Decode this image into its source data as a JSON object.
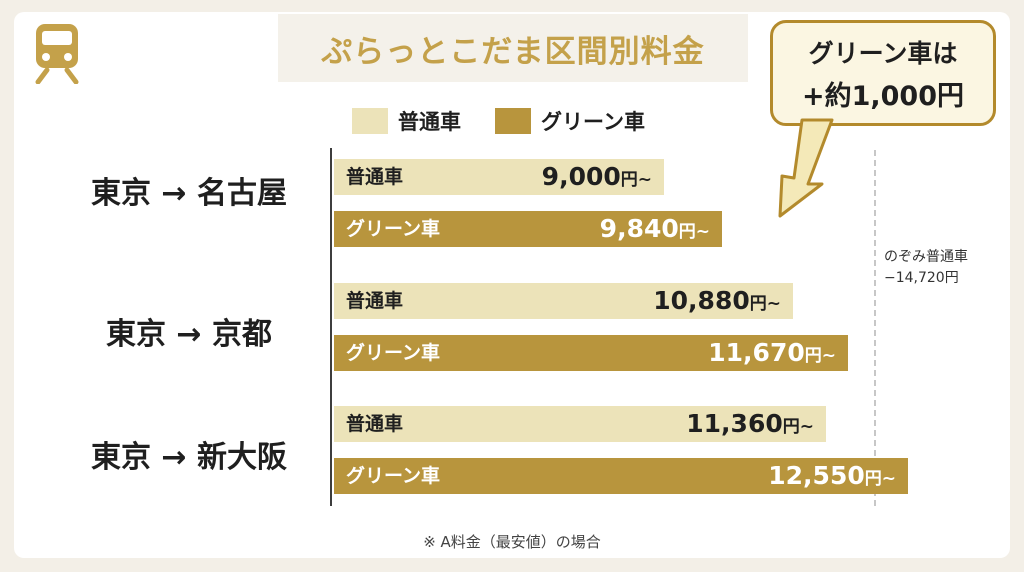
{
  "title": "ぷらっとこだま区間別料金",
  "icon": "train-icon",
  "colors": {
    "futsu": "#ece3b9",
    "green": "#b8953d",
    "title": "#c4a14a"
  },
  "legend": [
    {
      "label": "普通車",
      "color": "#ece3b9"
    },
    {
      "label": "グリーン車",
      "color": "#b8953d"
    }
  ],
  "callout": {
    "line1": "グリーン車は",
    "line2": "+約1,000円"
  },
  "reference": {
    "line1": "のぞみ普通車",
    "line2": "−14,720円",
    "value": 14720
  },
  "footnote": "※ A料金（最安値）の場合",
  "chart_data": {
    "type": "bar",
    "orientation": "horizontal",
    "title": "ぷらっとこだま区間別料金",
    "categories": [
      "東京 → 名古屋",
      "東京 → 京都",
      "東京 → 新大阪"
    ],
    "series": [
      {
        "name": "普通車",
        "values": [
          9000,
          10880,
          11360
        ],
        "labels": [
          "9,000",
          "10,880",
          "11,360"
        ]
      },
      {
        "name": "グリーン車",
        "values": [
          9840,
          11670,
          12550
        ],
        "labels": [
          "9,840",
          "11,670",
          "12,550"
        ]
      }
    ],
    "value_suffix": "円~",
    "reference_value": 14720,
    "legend_position": "top"
  }
}
